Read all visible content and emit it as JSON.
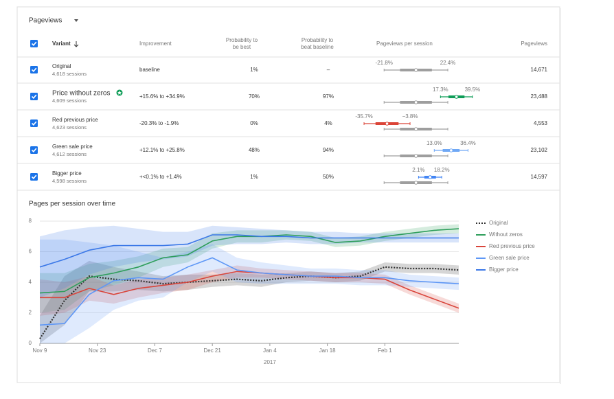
{
  "header": {
    "title": "Pageviews"
  },
  "table": {
    "columns": [
      "Variant",
      "Improvement",
      [
        "Probability to",
        "be best"
      ],
      [
        "Probability to",
        "beat baseline"
      ],
      "Pageviews per session",
      "Pageviews"
    ],
    "rows": [
      {
        "name": "Original",
        "sessions": "4,618 sessions",
        "improvement": "baseline",
        "prob_best": "1%",
        "prob_beat": "–",
        "interval": {
          "low": -21.8,
          "high": 22.4,
          "low_label": "-21.8%",
          "high_label": "22.4%"
        },
        "pageviews": "14,671",
        "text_color": "#555555",
        "bar_color": "#9e9e9e"
      },
      {
        "name": "Price without zeros",
        "sessions": "4,609 sessions",
        "improvement": "+15.6% to +34.9%",
        "prob_best": "70%",
        "prob_beat": "97%",
        "interval": {
          "low": 17.3,
          "high": 39.5,
          "low_label": "17.3%",
          "high_label": "39.5%"
        },
        "pageviews": "23,488",
        "text_color": "#0f9d58",
        "bar_color": "#0f9d58"
      },
      {
        "name": "Red previous price",
        "sessions": "4,623 sessions",
        "improvement": "-20.3% to -1.9%",
        "prob_best": "0%",
        "prob_beat": "4%",
        "interval": {
          "low": -35.7,
          "high": -3.8,
          "low_label": "-35.7%",
          "high_label": "−3.8%"
        },
        "pageviews": "4,553",
        "text_color": "#db4437",
        "bar_color": "#db4437"
      },
      {
        "name": "Green sale price",
        "sessions": "4,612 sessions",
        "improvement": "+12.1% to +25.8%",
        "prob_best": "48%",
        "prob_beat": "94%",
        "interval": {
          "low": 13.0,
          "high": 36.4,
          "low_label": "13.0%",
          "high_label": "36.4%"
        },
        "pageviews": "23,102",
        "text_color": "#333333",
        "bar_color": "#6fa8f5"
      },
      {
        "name": "Bigger price",
        "sessions": "4,598 sessions",
        "improvement": "+<0.1% to +1.4%",
        "prob_best": "1%",
        "prob_beat": "50%",
        "interval": {
          "low": 2.1,
          "high": 18.2,
          "low_label": "2.1%",
          "high_label": "18.2%"
        },
        "pageviews": "14,597",
        "text_color": "#333333",
        "bar_color": "#4285f4"
      }
    ]
  },
  "chart_data": {
    "type": "line",
    "title": "Pages per session over time",
    "x": [
      0,
      6,
      12,
      18,
      24,
      30,
      36,
      42,
      48,
      54,
      60,
      66,
      72,
      78,
      84,
      90,
      96,
      102
    ],
    "xlim": [
      0,
      102
    ],
    "xticks": [
      {
        "value": 0,
        "label": "Nov 9"
      },
      {
        "value": 14,
        "label": "Nov 23"
      },
      {
        "value": 28,
        "label": "Dec 7"
      },
      {
        "value": 42,
        "label": "Dec 21"
      },
      {
        "value": 56,
        "label": "Jan 4"
      },
      {
        "value": 70,
        "label": "Jan 18"
      },
      {
        "value": 84,
        "label": "Feb 1"
      }
    ],
    "x_year_label": "2017",
    "ylim": [
      0,
      8
    ],
    "yticks": [
      0,
      2,
      4,
      6,
      8
    ],
    "grid": true,
    "legend": "right",
    "series": [
      {
        "name": "Original",
        "color": "#333333",
        "style": "dotted",
        "values": [
          0.3,
          2.8,
          4.4,
          4.2,
          4.1,
          3.9,
          4.0,
          4.1,
          4.2,
          4.1,
          4.3,
          4.4,
          4.3,
          4.4,
          5.0,
          4.9,
          4.9,
          4.8
        ],
        "lower": [
          0.0,
          1.2,
          3.4,
          3.4,
          3.5,
          3.4,
          3.5,
          3.7,
          3.8,
          3.7,
          4.0,
          4.1,
          4.0,
          4.1,
          4.7,
          4.6,
          4.6,
          4.5
        ],
        "upper": [
          1.8,
          4.4,
          5.4,
          5.0,
          4.7,
          4.4,
          4.5,
          4.5,
          4.6,
          4.5,
          4.6,
          4.7,
          4.6,
          4.7,
          5.3,
          5.2,
          5.2,
          5.1
        ]
      },
      {
        "name": "Without zeros",
        "color": "#2e9e5b",
        "style": "solid",
        "values": [
          3.3,
          3.4,
          4.3,
          4.6,
          5.0,
          5.6,
          5.8,
          6.7,
          7.0,
          7.0,
          7.1,
          7.0,
          6.6,
          6.7,
          7.0,
          7.2,
          7.4,
          7.5
        ],
        "lower": [
          2.0,
          2.2,
          3.4,
          3.8,
          4.3,
          5.0,
          5.3,
          6.2,
          6.6,
          6.6,
          6.8,
          6.7,
          6.3,
          6.4,
          6.7,
          6.9,
          7.1,
          7.2
        ],
        "upper": [
          4.6,
          4.6,
          5.2,
          5.4,
          5.7,
          6.2,
          6.3,
          7.2,
          7.4,
          7.4,
          7.4,
          7.3,
          6.9,
          7.0,
          7.3,
          7.5,
          7.7,
          7.8
        ]
      },
      {
        "name": "Red previous price",
        "color": "#d9453b",
        "style": "solid",
        "values": [
          3.0,
          3.0,
          3.6,
          3.2,
          3.6,
          3.8,
          4.0,
          4.4,
          4.7,
          4.6,
          4.5,
          4.4,
          4.3,
          4.3,
          4.2,
          3.5,
          2.9,
          2.3
        ],
        "lower": [
          1.8,
          2.0,
          2.8,
          2.6,
          3.0,
          3.3,
          3.5,
          4.0,
          4.3,
          4.3,
          4.2,
          4.1,
          4.0,
          4.0,
          3.9,
          3.2,
          2.6,
          2.0
        ],
        "upper": [
          4.2,
          4.0,
          4.4,
          3.8,
          4.2,
          4.3,
          4.5,
          4.8,
          5.1,
          4.9,
          4.8,
          4.7,
          4.6,
          4.6,
          4.5,
          3.8,
          3.2,
          2.6
        ]
      },
      {
        "name": "Green sale price",
        "color": "#5e97f6",
        "style": "solid",
        "values": [
          1.2,
          1.3,
          3.2,
          4.1,
          4.3,
          4.2,
          5.0,
          5.6,
          4.8,
          4.6,
          4.5,
          4.4,
          4.4,
          4.3,
          4.3,
          4.1,
          4.0,
          3.9
        ],
        "lower": [
          0.0,
          0.0,
          1.0,
          2.2,
          2.8,
          3.0,
          4.0,
          4.7,
          4.0,
          3.9,
          3.9,
          3.9,
          3.9,
          3.8,
          3.8,
          3.7,
          3.6,
          3.5
        ],
        "upper": [
          6.8,
          6.8,
          6.6,
          6.4,
          6.0,
          5.6,
          6.0,
          6.5,
          5.6,
          5.3,
          5.1,
          4.9,
          4.9,
          4.8,
          4.8,
          4.5,
          4.4,
          4.3
        ]
      },
      {
        "name": "Bigger price",
        "color": "#3b78e7",
        "style": "solid",
        "values": [
          5.0,
          5.5,
          6.1,
          6.4,
          6.4,
          6.4,
          6.5,
          7.1,
          7.1,
          7.0,
          7.0,
          6.9,
          6.9,
          6.9,
          6.9,
          6.9,
          6.9,
          6.9
        ],
        "lower": [
          3.0,
          3.6,
          4.5,
          5.0,
          5.3,
          5.5,
          5.7,
          6.4,
          6.5,
          6.5,
          6.6,
          6.5,
          6.5,
          6.6,
          6.6,
          6.6,
          6.6,
          6.6
        ],
        "upper": [
          7.0,
          7.4,
          7.6,
          7.7,
          7.5,
          7.3,
          7.3,
          7.7,
          7.6,
          7.5,
          7.4,
          7.3,
          7.3,
          7.2,
          7.2,
          7.2,
          7.2,
          7.2
        ]
      }
    ]
  }
}
